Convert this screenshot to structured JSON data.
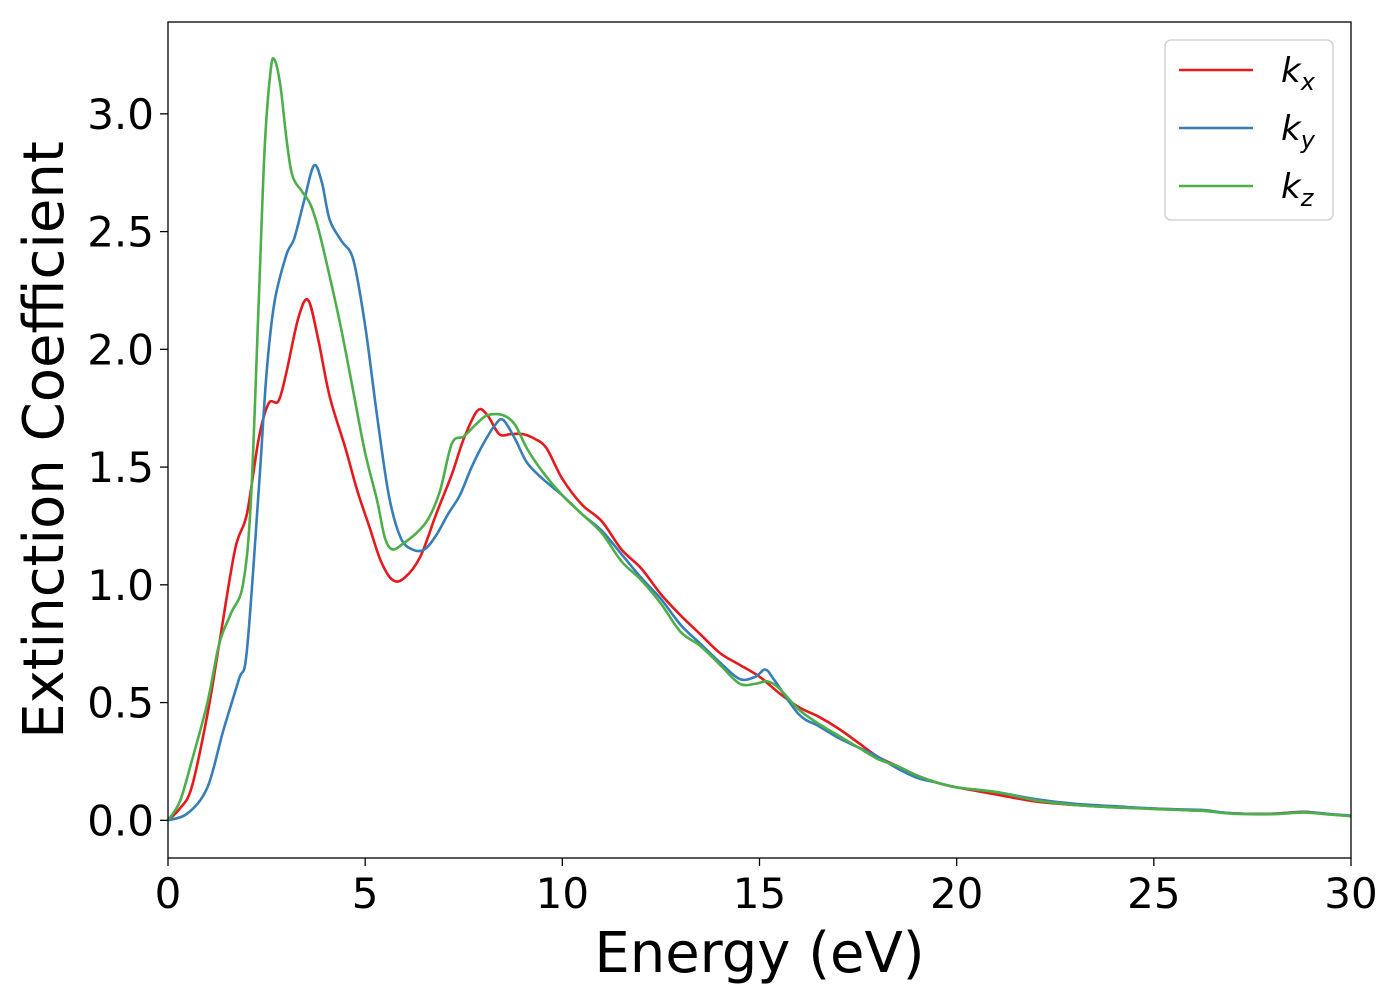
{
  "chart_data": {
    "type": "line",
    "title": "",
    "xlabel": "Energy (eV)",
    "ylabel": "Extinction Coefficient",
    "xlim": [
      0,
      30
    ],
    "ylim": [
      -0.16,
      3.39
    ],
    "xticks": [
      0,
      5,
      10,
      15,
      20,
      25,
      30
    ],
    "xtick_labels": [
      "0",
      "5",
      "10",
      "15",
      "20",
      "25",
      "30"
    ],
    "yticks": [
      0.0,
      0.5,
      1.0,
      1.5,
      2.0,
      2.5,
      3.0
    ],
    "ytick_labels": [
      "0.0",
      "0.5",
      "1.0",
      "1.5",
      "2.0",
      "2.5",
      "3.0"
    ],
    "grid": false,
    "legend_position": "top-right",
    "series": [
      {
        "name": "k",
        "subscript": "x",
        "color": "#e41a1c",
        "points": [
          [
            0,
            0.0
          ],
          [
            0.3,
            0.05
          ],
          [
            0.6,
            0.14
          ],
          [
            1.0,
            0.45
          ],
          [
            1.3,
            0.75
          ],
          [
            1.7,
            1.15
          ],
          [
            2.0,
            1.3
          ],
          [
            2.3,
            1.62
          ],
          [
            2.55,
            1.77
          ],
          [
            2.8,
            1.78
          ],
          [
            3.0,
            1.9
          ],
          [
            3.3,
            2.13
          ],
          [
            3.55,
            2.21
          ],
          [
            3.8,
            2.05
          ],
          [
            4.1,
            1.8
          ],
          [
            4.5,
            1.58
          ],
          [
            4.8,
            1.4
          ],
          [
            5.1,
            1.25
          ],
          [
            5.4,
            1.1
          ],
          [
            5.7,
            1.02
          ],
          [
            6.0,
            1.03
          ],
          [
            6.4,
            1.12
          ],
          [
            6.8,
            1.3
          ],
          [
            7.2,
            1.47
          ],
          [
            7.5,
            1.62
          ],
          [
            7.85,
            1.74
          ],
          [
            8.1,
            1.72
          ],
          [
            8.4,
            1.64
          ],
          [
            8.7,
            1.64
          ],
          [
            9.0,
            1.64
          ],
          [
            9.3,
            1.62
          ],
          [
            9.6,
            1.58
          ],
          [
            10.0,
            1.45
          ],
          [
            10.5,
            1.34
          ],
          [
            11.0,
            1.27
          ],
          [
            11.5,
            1.15
          ],
          [
            12.0,
            1.07
          ],
          [
            12.5,
            0.96
          ],
          [
            13.0,
            0.87
          ],
          [
            13.5,
            0.79
          ],
          [
            14.0,
            0.71
          ],
          [
            14.5,
            0.66
          ],
          [
            15.0,
            0.61
          ],
          [
            15.5,
            0.54
          ],
          [
            16.0,
            0.48
          ],
          [
            16.5,
            0.44
          ],
          [
            17.0,
            0.39
          ],
          [
            17.5,
            0.33
          ],
          [
            18.0,
            0.27
          ],
          [
            18.5,
            0.23
          ],
          [
            19.0,
            0.19
          ],
          [
            19.5,
            0.16
          ],
          [
            20.0,
            0.14
          ],
          [
            21.0,
            0.11
          ],
          [
            22.0,
            0.08
          ],
          [
            23.0,
            0.065
          ],
          [
            24.0,
            0.055
          ],
          [
            25.0,
            0.05
          ],
          [
            26.0,
            0.042
          ],
          [
            26.3,
            0.04
          ],
          [
            27.0,
            0.03
          ],
          [
            28.0,
            0.028
          ],
          [
            28.8,
            0.036
          ],
          [
            29.5,
            0.025
          ],
          [
            30.0,
            0.018
          ]
        ]
      },
      {
        "name": "k",
        "subscript": "y",
        "color": "#377eb8",
        "points": [
          [
            0,
            0.0
          ],
          [
            0.5,
            0.03
          ],
          [
            1.0,
            0.14
          ],
          [
            1.4,
            0.38
          ],
          [
            1.8,
            0.6
          ],
          [
            2.0,
            0.72
          ],
          [
            2.3,
            1.4
          ],
          [
            2.5,
            1.9
          ],
          [
            2.7,
            2.2
          ],
          [
            3.0,
            2.4
          ],
          [
            3.2,
            2.47
          ],
          [
            3.45,
            2.63
          ],
          [
            3.7,
            2.78
          ],
          [
            3.9,
            2.71
          ],
          [
            4.1,
            2.55
          ],
          [
            4.4,
            2.46
          ],
          [
            4.7,
            2.38
          ],
          [
            5.0,
            2.1
          ],
          [
            5.3,
            1.72
          ],
          [
            5.6,
            1.38
          ],
          [
            5.9,
            1.2
          ],
          [
            6.2,
            1.15
          ],
          [
            6.5,
            1.15
          ],
          [
            6.8,
            1.21
          ],
          [
            7.1,
            1.3
          ],
          [
            7.4,
            1.38
          ],
          [
            7.7,
            1.5
          ],
          [
            8.0,
            1.6
          ],
          [
            8.3,
            1.68
          ],
          [
            8.5,
            1.7
          ],
          [
            8.8,
            1.62
          ],
          [
            9.1,
            1.52
          ],
          [
            9.5,
            1.45
          ],
          [
            10.0,
            1.38
          ],
          [
            10.5,
            1.3
          ],
          [
            11.0,
            1.23
          ],
          [
            11.5,
            1.13
          ],
          [
            12.0,
            1.03
          ],
          [
            12.5,
            0.94
          ],
          [
            13.0,
            0.83
          ],
          [
            13.5,
            0.75
          ],
          [
            14.0,
            0.67
          ],
          [
            14.5,
            0.6
          ],
          [
            14.9,
            0.61
          ],
          [
            15.15,
            0.64
          ],
          [
            15.4,
            0.59
          ],
          [
            16.0,
            0.45
          ],
          [
            16.5,
            0.4
          ],
          [
            17.0,
            0.35
          ],
          [
            17.5,
            0.31
          ],
          [
            18.0,
            0.27
          ],
          [
            18.5,
            0.22
          ],
          [
            19.0,
            0.18
          ],
          [
            19.5,
            0.16
          ],
          [
            20.0,
            0.14
          ],
          [
            21.0,
            0.12
          ],
          [
            22.0,
            0.09
          ],
          [
            23.0,
            0.07
          ],
          [
            24.0,
            0.06
          ],
          [
            25.0,
            0.05
          ],
          [
            26.0,
            0.045
          ],
          [
            26.3,
            0.043
          ],
          [
            27.0,
            0.03
          ],
          [
            28.0,
            0.027
          ],
          [
            28.8,
            0.035
          ],
          [
            29.5,
            0.026
          ],
          [
            30.0,
            0.02
          ]
        ]
      },
      {
        "name": "k",
        "subscript": "z",
        "color": "#4daf4a",
        "points": [
          [
            0,
            0.0
          ],
          [
            0.3,
            0.08
          ],
          [
            0.6,
            0.25
          ],
          [
            1.0,
            0.5
          ],
          [
            1.3,
            0.75
          ],
          [
            1.6,
            0.88
          ],
          [
            1.9,
            1.0
          ],
          [
            2.1,
            1.35
          ],
          [
            2.3,
            2.2
          ],
          [
            2.45,
            2.85
          ],
          [
            2.6,
            3.18
          ],
          [
            2.7,
            3.23
          ],
          [
            2.85,
            3.12
          ],
          [
            3.0,
            2.9
          ],
          [
            3.15,
            2.74
          ],
          [
            3.4,
            2.67
          ],
          [
            3.6,
            2.62
          ],
          [
            3.8,
            2.52
          ],
          [
            4.1,
            2.31
          ],
          [
            4.4,
            2.08
          ],
          [
            4.7,
            1.82
          ],
          [
            5.0,
            1.56
          ],
          [
            5.3,
            1.36
          ],
          [
            5.5,
            1.2
          ],
          [
            5.7,
            1.15
          ],
          [
            6.0,
            1.18
          ],
          [
            6.3,
            1.22
          ],
          [
            6.6,
            1.28
          ],
          [
            6.9,
            1.4
          ],
          [
            7.2,
            1.6
          ],
          [
            7.5,
            1.63
          ],
          [
            7.8,
            1.68
          ],
          [
            8.1,
            1.72
          ],
          [
            8.5,
            1.72
          ],
          [
            8.8,
            1.68
          ],
          [
            9.1,
            1.58
          ],
          [
            9.5,
            1.48
          ],
          [
            10.0,
            1.38
          ],
          [
            10.5,
            1.3
          ],
          [
            11.0,
            1.22
          ],
          [
            11.5,
            1.1
          ],
          [
            12.0,
            1.02
          ],
          [
            12.5,
            0.92
          ],
          [
            13.0,
            0.8
          ],
          [
            13.5,
            0.74
          ],
          [
            14.0,
            0.66
          ],
          [
            14.5,
            0.58
          ],
          [
            14.9,
            0.58
          ],
          [
            15.2,
            0.59
          ],
          [
            15.5,
            0.56
          ],
          [
            16.0,
            0.47
          ],
          [
            16.5,
            0.41
          ],
          [
            17.0,
            0.36
          ],
          [
            17.5,
            0.31
          ],
          [
            18.0,
            0.26
          ],
          [
            18.5,
            0.23
          ],
          [
            19.0,
            0.19
          ],
          [
            19.5,
            0.16
          ],
          [
            20.0,
            0.14
          ],
          [
            21.0,
            0.12
          ],
          [
            22.0,
            0.085
          ],
          [
            23.0,
            0.065
          ],
          [
            24.0,
            0.055
          ],
          [
            25.0,
            0.048
          ],
          [
            26.0,
            0.042
          ],
          [
            26.3,
            0.04
          ],
          [
            27.0,
            0.028
          ],
          [
            28.0,
            0.026
          ],
          [
            28.8,
            0.033
          ],
          [
            29.5,
            0.024
          ],
          [
            30.0,
            0.018
          ]
        ]
      }
    ]
  }
}
